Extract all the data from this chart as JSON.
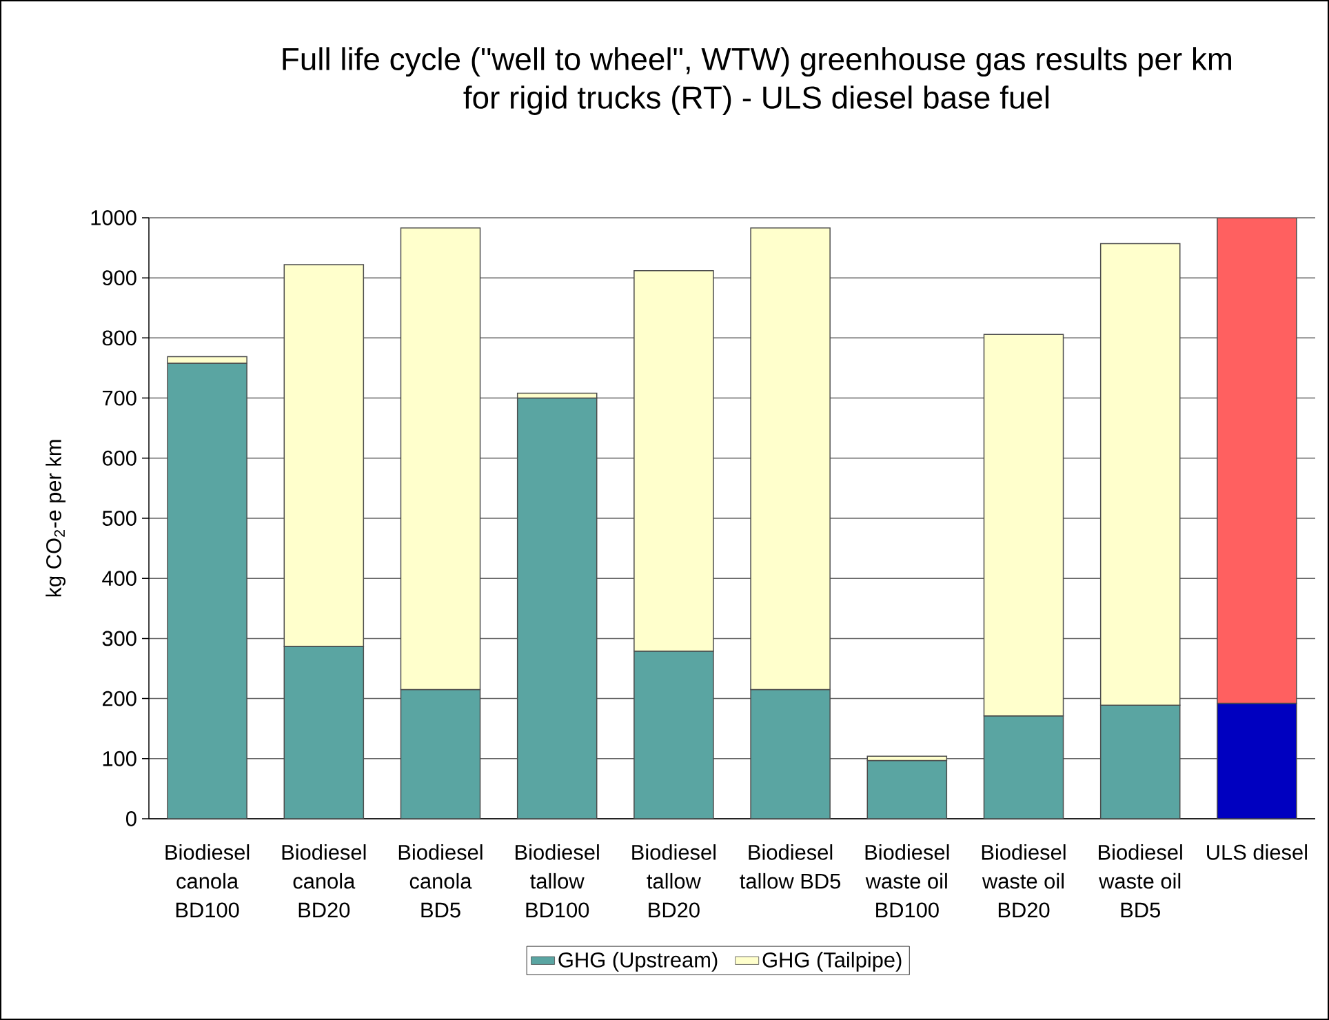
{
  "chart_data": {
    "type": "bar",
    "stacked": true,
    "title": "Full life cycle (\"well to wheel\", WTW) greenhouse gas results per km for rigid trucks (RT) - ULS diesel base fuel",
    "ylabel": "kg CO$_{2}$-e per km",
    "categories": [
      "Biodiesel canola BD100",
      "Biodiesel canola BD20",
      "Biodiesel canola BD5",
      "Biodiesel tallow BD100",
      "Biodiesel tallow BD20",
      "Biodiesel tallow BD5",
      "Biodiesel waste oil BD100",
      "Biodiesel waste oil BD20",
      "Biodiesel waste oil BD5",
      "ULS diesel"
    ],
    "series": [
      {
        "name": "GHG (Upstream)",
        "color": "#5aa5a2",
        "colors": [
          "#5aa5a2",
          "#5aa5a2",
          "#5aa5a2",
          "#5aa5a2",
          "#5aa5a2",
          "#5aa5a2",
          "#5aa5a2",
          "#5aa5a2",
          "#5aa5a2",
          "#0000c0"
        ],
        "values": [
          758,
          287,
          215,
          700,
          279,
          215,
          97,
          171,
          189,
          192
        ]
      },
      {
        "name": "GHG (Tailpipe)",
        "color": "#ffffcc",
        "colors": [
          "#ffffcc",
          "#ffffcc",
          "#ffffcc",
          "#ffffcc",
          "#ffffcc",
          "#ffffcc",
          "#ffffcc",
          "#ffffcc",
          "#ffffcc",
          "#ff6060"
        ],
        "values": [
          11,
          635,
          768,
          8,
          633,
          768,
          7,
          635,
          768,
          808
        ]
      }
    ],
    "ylim": [
      0,
      1000
    ],
    "yticks": [
      0,
      100,
      200,
      300,
      400,
      500,
      600,
      700,
      800,
      900,
      1000
    ],
    "grid": "y",
    "legend": "bottom"
  }
}
